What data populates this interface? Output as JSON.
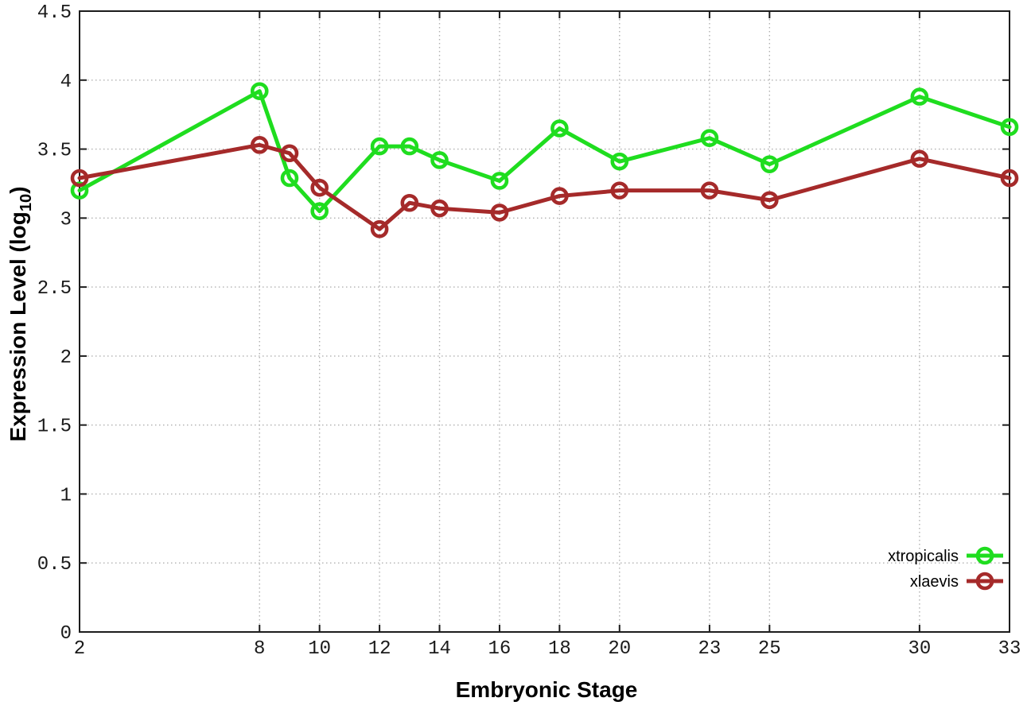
{
  "chart_data": {
    "type": "line",
    "xlabel": "Embryonic Stage",
    "ylabel": "Expression Level (log10)",
    "ylabel_main": "Expression Level (log",
    "ylabel_sub": "10",
    "ylabel_suffix": ")",
    "x": [
      2,
      8,
      9,
      10,
      12,
      13,
      14,
      16,
      18,
      20,
      23,
      25,
      30,
      33
    ],
    "series": [
      {
        "name": "xtropicalis",
        "color": "#1fdd1f",
        "values": [
          3.2,
          3.92,
          3.29,
          3.05,
          3.52,
          3.52,
          3.42,
          3.27,
          3.65,
          3.41,
          3.58,
          3.39,
          3.88,
          3.66
        ]
      },
      {
        "name": "xlaevis",
        "color": "#a52a2a",
        "values": [
          3.29,
          3.53,
          3.47,
          3.22,
          2.92,
          3.11,
          3.07,
          3.04,
          3.16,
          3.2,
          3.2,
          3.13,
          3.43,
          3.29
        ]
      }
    ],
    "xlim": [
      2,
      33
    ],
    "ylim": [
      0,
      4.5
    ],
    "xticks": {
      "values": [
        2,
        8,
        10,
        12,
        14,
        16,
        18,
        20,
        23,
        25,
        30,
        33
      ],
      "labels": [
        "2",
        "8",
        "10",
        "12",
        "14",
        "16",
        "18",
        "20",
        "23",
        "25",
        "30",
        "33"
      ]
    },
    "yticks": {
      "values": [
        0,
        0.5,
        1,
        1.5,
        2,
        2.5,
        3,
        3.5,
        4,
        4.5
      ],
      "labels": [
        "0",
        "0.5",
        "1",
        "1.5",
        "2",
        "2.5",
        "3",
        "3.5",
        "4",
        "4.5"
      ]
    },
    "grid": true,
    "legend_position": "bottom-right",
    "legend": [
      "xtropicalis",
      "xlaevis"
    ]
  },
  "style": {
    "background": "#ffffff",
    "frame_color": "#1c1c1c",
    "grid_color": "#b0b0b0",
    "tick_label_color": "#1a1a1a",
    "legend_text_color": "#000000"
  }
}
